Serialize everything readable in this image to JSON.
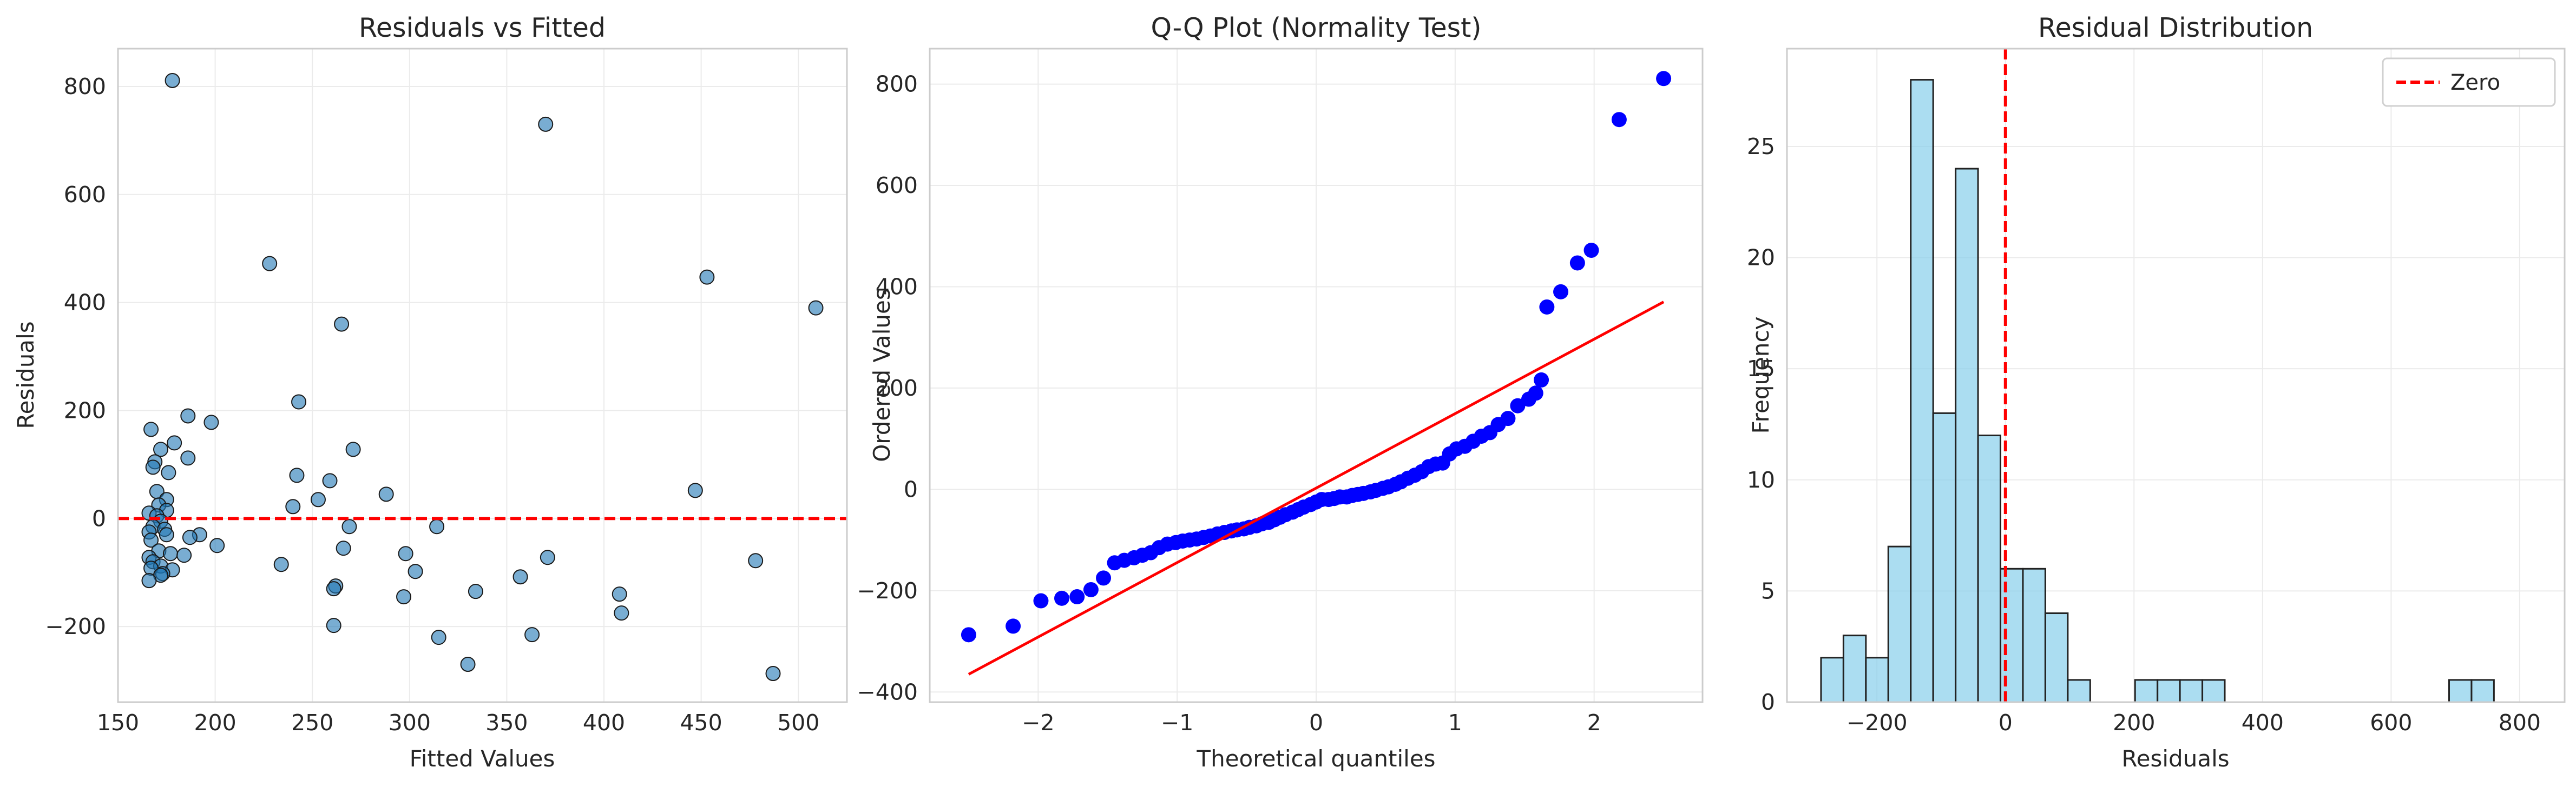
{
  "chart_data": [
    {
      "type": "scatter",
      "title": "Residuals vs Fitted",
      "xlabel": "Fitted Values",
      "ylabel": "Residuals",
      "xlim": [
        150,
        525
      ],
      "ylim": [
        -340,
        870
      ],
      "xticks": [
        150,
        200,
        250,
        300,
        350,
        400,
        450,
        500
      ],
      "yticks": [
        -200,
        0,
        200,
        400,
        600,
        800
      ],
      "grid": true,
      "point_color": "#1f77b4",
      "reference_line": {
        "y": 0,
        "color": "#ff0000",
        "style": "dashed"
      },
      "points": [
        {
          "x": 178,
          "y": 811
        },
        {
          "x": 370,
          "y": 730
        },
        {
          "x": 228,
          "y": 472
        },
        {
          "x": 453,
          "y": 447
        },
        {
          "x": 509,
          "y": 390
        },
        {
          "x": 265,
          "y": 360
        },
        {
          "x": 243,
          "y": 216
        },
        {
          "x": 186,
          "y": 190
        },
        {
          "x": 198,
          "y": 178
        },
        {
          "x": 167,
          "y": 165
        },
        {
          "x": 179,
          "y": 140
        },
        {
          "x": 172,
          "y": 128
        },
        {
          "x": 271,
          "y": 128
        },
        {
          "x": 186,
          "y": 112
        },
        {
          "x": 169,
          "y": 105
        },
        {
          "x": 168,
          "y": 95
        },
        {
          "x": 176,
          "y": 85
        },
        {
          "x": 242,
          "y": 80
        },
        {
          "x": 259,
          "y": 70
        },
        {
          "x": 170,
          "y": 50
        },
        {
          "x": 447,
          "y": 52
        },
        {
          "x": 288,
          "y": 45
        },
        {
          "x": 175,
          "y": 35
        },
        {
          "x": 253,
          "y": 35
        },
        {
          "x": 171,
          "y": 25
        },
        {
          "x": 240,
          "y": 22
        },
        {
          "x": 166,
          "y": 10
        },
        {
          "x": 175,
          "y": 15
        },
        {
          "x": 170,
          "y": 5
        },
        {
          "x": 172,
          "y": -5
        },
        {
          "x": 168,
          "y": -15
        },
        {
          "x": 314,
          "y": -15
        },
        {
          "x": 269,
          "y": -15
        },
        {
          "x": 174,
          "y": -20
        },
        {
          "x": 166,
          "y": -25
        },
        {
          "x": 175,
          "y": -30
        },
        {
          "x": 192,
          "y": -30
        },
        {
          "x": 187,
          "y": -35
        },
        {
          "x": 167,
          "y": -40
        },
        {
          "x": 201,
          "y": -50
        },
        {
          "x": 266,
          "y": -55
        },
        {
          "x": 171,
          "y": -60
        },
        {
          "x": 177,
          "y": -65
        },
        {
          "x": 298,
          "y": -65
        },
        {
          "x": 184,
          "y": -68
        },
        {
          "x": 166,
          "y": -72
        },
        {
          "x": 371,
          "y": -72
        },
        {
          "x": 478,
          "y": -78
        },
        {
          "x": 168,
          "y": -80
        },
        {
          "x": 234,
          "y": -85
        },
        {
          "x": 172,
          "y": -88
        },
        {
          "x": 167,
          "y": -92
        },
        {
          "x": 178,
          "y": -95
        },
        {
          "x": 303,
          "y": -98
        },
        {
          "x": 173,
          "y": -102
        },
        {
          "x": 172,
          "y": -105
        },
        {
          "x": 357,
          "y": -108
        },
        {
          "x": 166,
          "y": -115
        },
        {
          "x": 262,
          "y": -125
        },
        {
          "x": 261,
          "y": -130
        },
        {
          "x": 334,
          "y": -135
        },
        {
          "x": 408,
          "y": -140
        },
        {
          "x": 297,
          "y": -145
        },
        {
          "x": 409,
          "y": -175
        },
        {
          "x": 261,
          "y": -198
        },
        {
          "x": 363,
          "y": -215
        },
        {
          "x": 315,
          "y": -220
        },
        {
          "x": 330,
          "y": -270
        },
        {
          "x": 487,
          "y": -287
        }
      ]
    },
    {
      "type": "scatter",
      "title": "Q-Q Plot (Normality Test)",
      "xlabel": "Theoretical quantiles",
      "ylabel": "Ordered Values",
      "xlim": [
        -2.78,
        2.78
      ],
      "ylim": [
        -420,
        870
      ],
      "xticks": [
        -2,
        -1,
        0,
        1,
        2
      ],
      "yticks": [
        -400,
        -200,
        0,
        200,
        400,
        600,
        800
      ],
      "grid": true,
      "point_color": "#0000ff",
      "fit_line": {
        "x": [
          -2.5,
          2.5
        ],
        "y": [
          -365,
          370
        ],
        "color": "#ff0000"
      },
      "points": [
        {
          "x": -2.5,
          "y": -287
        },
        {
          "x": -2.18,
          "y": -270
        },
        {
          "x": -1.98,
          "y": -220
        },
        {
          "x": -1.83,
          "y": -215
        },
        {
          "x": -1.72,
          "y": -212
        },
        {
          "x": -1.62,
          "y": -198
        },
        {
          "x": -1.53,
          "y": -175
        },
        {
          "x": -1.45,
          "y": -145
        },
        {
          "x": -1.38,
          "y": -140
        },
        {
          "x": -1.31,
          "y": -135
        },
        {
          "x": -1.25,
          "y": -130
        },
        {
          "x": -1.19,
          "y": -125
        },
        {
          "x": -1.13,
          "y": -115
        },
        {
          "x": -1.07,
          "y": -108
        },
        {
          "x": -1.01,
          "y": -105
        },
        {
          "x": -0.96,
          "y": -102
        },
        {
          "x": -0.91,
          "y": -100
        },
        {
          "x": -0.86,
          "y": -98
        },
        {
          "x": -0.81,
          "y": -95
        },
        {
          "x": -0.76,
          "y": -92
        },
        {
          "x": -0.71,
          "y": -88
        },
        {
          "x": -0.66,
          "y": -85
        },
        {
          "x": -0.61,
          "y": -82
        },
        {
          "x": -0.57,
          "y": -80
        },
        {
          "x": -0.52,
          "y": -78
        },
        {
          "x": -0.48,
          "y": -75
        },
        {
          "x": -0.43,
          "y": -72
        },
        {
          "x": -0.39,
          "y": -68
        },
        {
          "x": -0.34,
          "y": -65
        },
        {
          "x": -0.3,
          "y": -60
        },
        {
          "x": -0.26,
          "y": -55
        },
        {
          "x": -0.22,
          "y": -50
        },
        {
          "x": -0.17,
          "y": -45
        },
        {
          "x": -0.13,
          "y": -40
        },
        {
          "x": -0.09,
          "y": -35
        },
        {
          "x": -0.04,
          "y": -30
        },
        {
          "x": 0.0,
          "y": -25
        },
        {
          "x": 0.04,
          "y": -20
        },
        {
          "x": 0.09,
          "y": -20
        },
        {
          "x": 0.13,
          "y": -18
        },
        {
          "x": 0.17,
          "y": -15
        },
        {
          "x": 0.22,
          "y": -15
        },
        {
          "x": 0.26,
          "y": -12
        },
        {
          "x": 0.3,
          "y": -10
        },
        {
          "x": 0.34,
          "y": -8
        },
        {
          "x": 0.39,
          "y": -5
        },
        {
          "x": 0.43,
          "y": -2
        },
        {
          "x": 0.48,
          "y": 2
        },
        {
          "x": 0.52,
          "y": 5
        },
        {
          "x": 0.57,
          "y": 10
        },
        {
          "x": 0.61,
          "y": 15
        },
        {
          "x": 0.66,
          "y": 22
        },
        {
          "x": 0.71,
          "y": 28
        },
        {
          "x": 0.76,
          "y": 35
        },
        {
          "x": 0.81,
          "y": 45
        },
        {
          "x": 0.86,
          "y": 50
        },
        {
          "x": 0.91,
          "y": 52
        },
        {
          "x": 0.96,
          "y": 70
        },
        {
          "x": 1.01,
          "y": 80
        },
        {
          "x": 1.07,
          "y": 85
        },
        {
          "x": 1.13,
          "y": 95
        },
        {
          "x": 1.19,
          "y": 105
        },
        {
          "x": 1.25,
          "y": 112
        },
        {
          "x": 1.31,
          "y": 128
        },
        {
          "x": 1.38,
          "y": 140
        },
        {
          "x": 1.45,
          "y": 165
        },
        {
          "x": 1.53,
          "y": 178
        },
        {
          "x": 1.58,
          "y": 190
        },
        {
          "x": 1.62,
          "y": 216
        },
        {
          "x": 1.66,
          "y": 360
        },
        {
          "x": 1.76,
          "y": 390
        },
        {
          "x": 1.88,
          "y": 447
        },
        {
          "x": 1.98,
          "y": 472
        },
        {
          "x": 2.18,
          "y": 730
        },
        {
          "x": 2.5,
          "y": 811
        }
      ]
    },
    {
      "type": "bar",
      "title": "Residual Distribution",
      "xlabel": "Residuals",
      "ylabel": "Frequency",
      "xlim": [
        -340,
        870
      ],
      "ylim": [
        0,
        29.4
      ],
      "xticks": [
        -200,
        0,
        200,
        400,
        600,
        800
      ],
      "yticks": [
        0,
        5,
        10,
        15,
        20,
        25
      ],
      "grid": true,
      "bar_color": "#87ceeb",
      "bin_edges": [
        -287,
        -252.1,
        -217.2,
        -182.3,
        -147.4,
        -112.5,
        -77.6,
        -42.7,
        -7.8,
        27.1,
        62.0,
        96.9,
        131.8,
        166.7,
        201.6,
        236.5,
        271.4,
        306.3,
        341.2,
        376.1,
        411.0,
        445.9,
        480.8,
        515.7,
        550.6,
        585.5,
        620.4,
        655.3,
        690.2,
        725.1,
        760.0,
        794.9,
        829.8
      ],
      "values": [
        2,
        3,
        2,
        7,
        28,
        13,
        24,
        12,
        6,
        6,
        4,
        1,
        0,
        0,
        1,
        1,
        1,
        1,
        0,
        0,
        0,
        0,
        0,
        0,
        0,
        0,
        0,
        0,
        1,
        1,
        0,
        0
      ],
      "reference_line": {
        "x": 0,
        "color": "#ff0000",
        "style": "dashed",
        "label": "Zero"
      },
      "legend": {
        "position": "top-right",
        "entries": [
          "Zero"
        ]
      }
    }
  ]
}
